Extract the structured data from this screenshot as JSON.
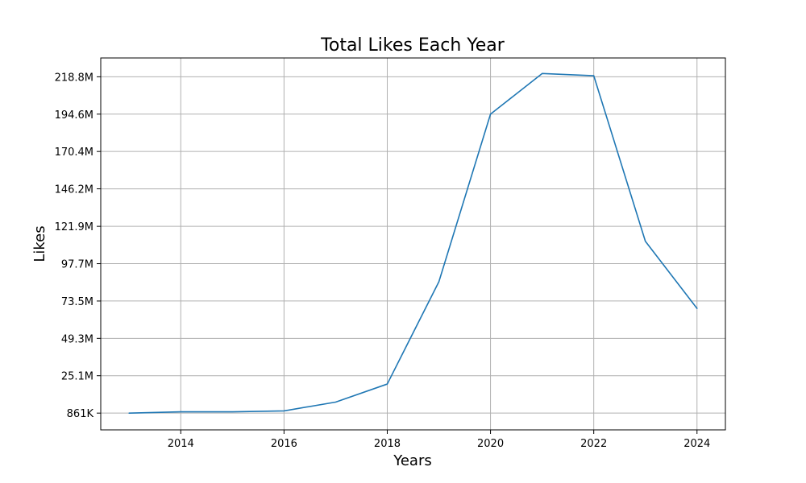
{
  "chart_data": {
    "type": "line",
    "title": "Total Likes Each Year",
    "xlabel": "Years",
    "ylabel": "Likes",
    "x": [
      2013,
      2014,
      2015,
      2016,
      2017,
      2018,
      2019,
      2020,
      2021,
      2022,
      2023,
      2024
    ],
    "series": [
      {
        "values": [
          861000,
          1700000,
          1700000,
          2300000,
          8000000,
          19700000,
          86000000,
          194600000,
          220900000,
          219500000,
          112200000,
          68700000
        ]
      }
    ],
    "xlim": [
      2012.45,
      2024.55
    ],
    "ylim": [
      -10000000,
      231000000
    ],
    "x_ticks": [
      2014,
      2016,
      2018,
      2020,
      2022,
      2024
    ],
    "x_tick_labels": [
      "2014",
      "2016",
      "2018",
      "2020",
      "2022",
      "2024"
    ],
    "y_ticks": [
      861000,
      25100000,
      49300000,
      73500000,
      97700000,
      121900000,
      146200000,
      170400000,
      194600000,
      218800000
    ],
    "y_tick_labels": [
      "861K",
      "25.1M",
      "49.3M",
      "73.5M",
      "97.7M",
      "121.9M",
      "146.2M",
      "170.4M",
      "194.6M",
      "218.8M"
    ],
    "grid": true,
    "colors": {
      "series": "#1f77b4"
    }
  }
}
